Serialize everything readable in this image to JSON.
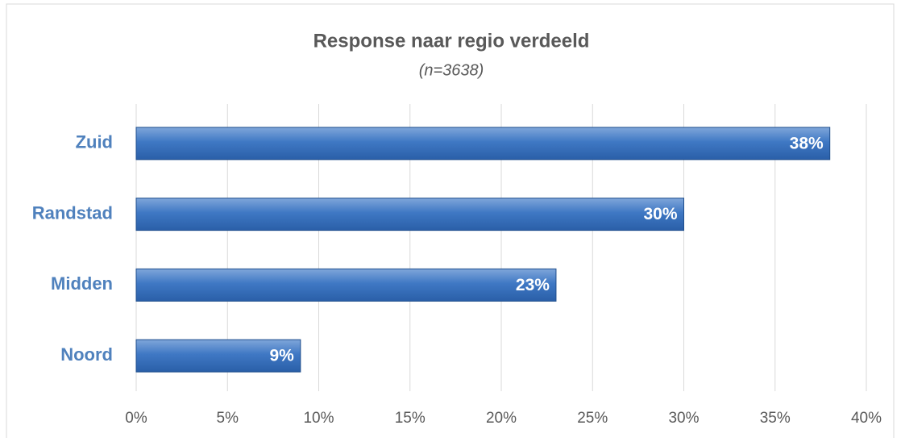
{
  "chart_data": {
    "type": "bar",
    "orientation": "horizontal",
    "title": "Response naar regio verdeeld",
    "subtitle": "(n=3638)",
    "categories": [
      "Zuid",
      "Randstad",
      "Midden",
      "Noord"
    ],
    "values": [
      38,
      30,
      23,
      9
    ],
    "value_labels": [
      "38%",
      "30%",
      "23%",
      "9%"
    ],
    "color": "#4f81bd",
    "xlim": [
      0,
      40
    ],
    "xticks": [
      {
        "value": 0,
        "label": "0%"
      },
      {
        "value": 5,
        "label": "5%"
      },
      {
        "value": 10,
        "label": "10%"
      },
      {
        "value": 15,
        "label": "15%"
      },
      {
        "value": 20,
        "label": "20%"
      },
      {
        "value": 25,
        "label": "25%"
      },
      {
        "value": 30,
        "label": "30%"
      },
      {
        "value": 35,
        "label": "35%"
      },
      {
        "value": 40,
        "label": "40%"
      }
    ],
    "grid": true
  }
}
